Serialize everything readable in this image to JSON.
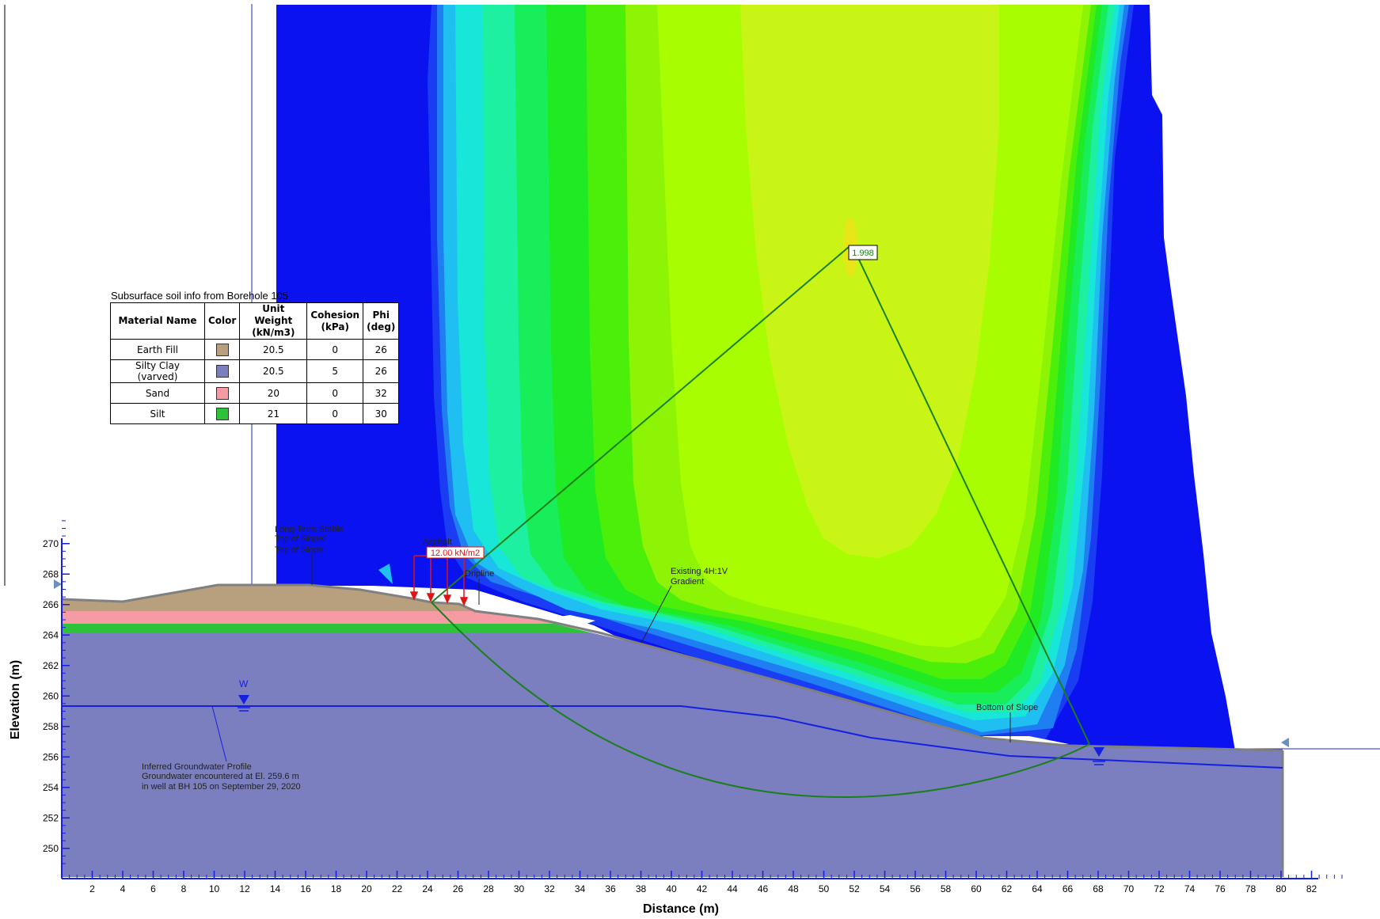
{
  "axes": {
    "x_label": "Distance (m)",
    "y_label": "Elevation (m)",
    "x_ticks": [
      2,
      4,
      6,
      8,
      10,
      12,
      14,
      16,
      18,
      20,
      22,
      24,
      26,
      28,
      30,
      32,
      34,
      36,
      38,
      40,
      42,
      44,
      46,
      48,
      50,
      52,
      54,
      56,
      58,
      60,
      62,
      64,
      66,
      68,
      70,
      72,
      74,
      76,
      78,
      80,
      82
    ],
    "y_ticks": [
      250,
      252,
      254,
      256,
      258,
      260,
      262,
      264,
      266,
      268,
      270
    ]
  },
  "legend": {
    "title": "Subsurface soil info from Borehole 105",
    "headers": [
      "Material Name",
      "Color",
      "Unit Weight (kN/m3)",
      "Cohesion (kPa)",
      "Phi (deg)"
    ],
    "rows": [
      {
        "name": "Earth Fill",
        "color": "#b8a07e",
        "unit_weight": "20.5",
        "cohesion": "0",
        "phi": "26"
      },
      {
        "name": "Silty Clay (varved)",
        "color": "#7b7fc0",
        "unit_weight": "20.5",
        "cohesion": "5",
        "phi": "26"
      },
      {
        "name": "Sand",
        "color": "#f69aa4",
        "unit_weight": "20",
        "cohesion": "0",
        "phi": "32"
      },
      {
        "name": "Silt",
        "color": "#2ec13a",
        "unit_weight": "21",
        "cohesion": "0",
        "phi": "30"
      }
    ]
  },
  "annotations": {
    "safety_factor": "1.998",
    "load": "12.00 kN/m2",
    "top_of_slope": [
      "Long-Term Stable",
      "Top of Slope/",
      "Top of Slope"
    ],
    "asphalt": "Asphalt",
    "dripline": "Dripline",
    "gradient": [
      "Existing 4H:1V",
      "Gradient"
    ],
    "bottom_of_slope": "Bottom of Slope",
    "water_marker": "W",
    "groundwater": [
      "Inferred Groundwater Profile",
      "Groundwater encountered at El. 259.6 m",
      "in well at BH 105 on September 29, 2020"
    ]
  },
  "colors": {
    "blue_field": "#0a12f0",
    "contour_bands": [
      "#1a3cf2",
      "#1f7ef2",
      "#1fbff2",
      "#17e6d8",
      "#1df0a0",
      "#18ee5a",
      "#20ea24",
      "#4cef0a",
      "#8ef406",
      "#a8fe00",
      "#c8f516"
    ],
    "earth_fill": "#b8a07e",
    "silty_clay": "#7b7fc0",
    "sand": "#f69aa4",
    "silt": "#2ec13a",
    "slip_circle": "#1a7f1a",
    "water_line": "#1420e0",
    "load_arrows": "#e01414"
  }
}
